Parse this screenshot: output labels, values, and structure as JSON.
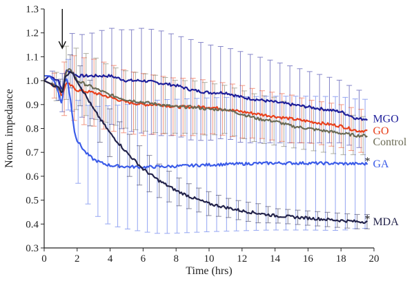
{
  "chart_data": {
    "type": "line",
    "xlabel": "Time (hrs)",
    "ylabel": "Norm. impedance",
    "xlim": [
      0,
      20
    ],
    "ylim": [
      0.3,
      1.3
    ],
    "xticks": [
      0,
      2,
      4,
      6,
      8,
      10,
      12,
      14,
      16,
      18,
      20
    ],
    "yticks": [
      0.3,
      0.4,
      0.5,
      0.6,
      0.7,
      0.8,
      0.9,
      1.0,
      1.1,
      1.2,
      1.3
    ],
    "grid": false,
    "arrow_at_x": 1.1,
    "series": [
      {
        "name": "MGO",
        "color": "#1f1f9a",
        "end_marker": "",
        "x": [
          0,
          0.3,
          0.6,
          0.9,
          1.1,
          1.3,
          1.6,
          2,
          3,
          4,
          5,
          6,
          7,
          8,
          9,
          10,
          11,
          12,
          13,
          14,
          15,
          16,
          17,
          18,
          19,
          19.6
        ],
        "values": [
          1.0,
          1.02,
          1.01,
          1.0,
          0.95,
          1.04,
          1.04,
          1.02,
          1.02,
          1.02,
          1.0,
          1.0,
          0.99,
          0.98,
          0.96,
          0.95,
          0.95,
          0.93,
          0.92,
          0.91,
          0.9,
          0.89,
          0.88,
          0.87,
          0.84,
          0.84
        ],
        "errors": [
          0.02,
          0.02,
          0.03,
          0.05,
          0.08,
          0.14,
          0.16,
          0.17,
          0.18,
          0.2,
          0.21,
          0.22,
          0.22,
          0.21,
          0.21,
          0.2,
          0.19,
          0.19,
          0.18,
          0.17,
          0.16,
          0.15,
          0.14,
          0.13,
          0.12,
          0.12
        ]
      },
      {
        "name": "GO",
        "color": "#e8401c",
        "end_marker": "",
        "x": [
          0,
          0.3,
          0.6,
          0.9,
          1.1,
          1.3,
          1.6,
          2,
          3,
          4,
          5,
          6,
          7,
          8,
          9,
          10,
          11,
          12,
          13,
          14,
          15,
          16,
          17,
          18,
          19,
          19.6
        ],
        "values": [
          1.0,
          0.99,
          0.98,
          0.97,
          0.93,
          0.99,
          0.98,
          0.96,
          0.95,
          0.93,
          0.91,
          0.9,
          0.9,
          0.89,
          0.89,
          0.89,
          0.88,
          0.87,
          0.86,
          0.85,
          0.84,
          0.83,
          0.82,
          0.81,
          0.79,
          0.79
        ],
        "errors": [
          0.02,
          0.03,
          0.05,
          0.08,
          0.1,
          0.12,
          0.13,
          0.14,
          0.14,
          0.14,
          0.13,
          0.13,
          0.12,
          0.12,
          0.12,
          0.11,
          0.11,
          0.11,
          0.1,
          0.1,
          0.1,
          0.09,
          0.09,
          0.09,
          0.09,
          0.09
        ]
      },
      {
        "name": "Control",
        "color": "#6b6b55",
        "end_marker": "",
        "x": [
          0,
          0.3,
          0.6,
          0.9,
          1.1,
          1.3,
          1.6,
          2,
          3,
          4,
          5,
          6,
          7,
          8,
          9,
          10,
          11,
          12,
          13,
          14,
          15,
          16,
          17,
          18,
          19,
          19.6
        ],
        "values": [
          1.0,
          0.99,
          0.98,
          0.97,
          0.95,
          1.03,
          1.05,
          1.0,
          0.97,
          0.94,
          0.92,
          0.91,
          0.9,
          0.89,
          0.89,
          0.88,
          0.88,
          0.86,
          0.84,
          0.83,
          0.81,
          0.8,
          0.79,
          0.78,
          0.77,
          0.77
        ],
        "errors": [
          0.02,
          0.03,
          0.05,
          0.07,
          0.09,
          0.11,
          0.12,
          0.13,
          0.13,
          0.12,
          0.12,
          0.12,
          0.12,
          0.11,
          0.11,
          0.11,
          0.1,
          0.1,
          0.1,
          0.1,
          0.09,
          0.09,
          0.09,
          0.09,
          0.08,
          0.08
        ]
      },
      {
        "name": "GA",
        "color": "#3a5be8",
        "end_marker": "*",
        "x": [
          0,
          0.3,
          0.6,
          0.9,
          1.0,
          1.1,
          1.2,
          1.4,
          1.6,
          1.8,
          2,
          2.5,
          3,
          3.5,
          4,
          5,
          6,
          7,
          8,
          9,
          10,
          11,
          12,
          13,
          14,
          15,
          16,
          17,
          18,
          19,
          19.6
        ],
        "values": [
          1.02,
          1.02,
          1.0,
          0.95,
          0.9,
          0.92,
          0.99,
          1.01,
          0.92,
          0.8,
          0.75,
          0.7,
          0.67,
          0.655,
          0.645,
          0.64,
          0.638,
          0.64,
          0.642,
          0.645,
          0.648,
          0.65,
          0.652,
          0.654,
          0.655,
          0.655,
          0.655,
          0.654,
          0.653,
          0.652,
          0.652
        ],
        "errors": [
          0.02,
          0.02,
          0.03,
          0.04,
          0.05,
          0.06,
          0.08,
          0.1,
          0.12,
          0.15,
          0.17,
          0.2,
          0.22,
          0.24,
          0.25,
          0.26,
          0.27,
          0.28,
          0.28,
          0.28,
          0.28,
          0.28,
          0.28,
          0.28,
          0.28,
          0.28,
          0.28,
          0.28,
          0.28,
          0.27,
          0.27
        ]
      },
      {
        "name": "MDA",
        "color": "#23234a",
        "end_marker": "*",
        "x": [
          0,
          0.3,
          0.6,
          0.9,
          1.1,
          1.3,
          1.6,
          2,
          2.5,
          3,
          3.5,
          4,
          5,
          6,
          7,
          8,
          9,
          10,
          11,
          12,
          13,
          14,
          15,
          16,
          17,
          18,
          19,
          19.6
        ],
        "values": [
          1.0,
          0.99,
          0.98,
          0.97,
          0.95,
          1.02,
          1.04,
          1.0,
          0.94,
          0.88,
          0.83,
          0.78,
          0.7,
          0.63,
          0.58,
          0.54,
          0.51,
          0.485,
          0.47,
          0.455,
          0.445,
          0.435,
          0.43,
          0.425,
          0.42,
          0.415,
          0.41,
          0.41
        ],
        "errors": [
          0.02,
          0.02,
          0.03,
          0.04,
          0.05,
          0.06,
          0.07,
          0.08,
          0.09,
          0.1,
          0.1,
          0.1,
          0.09,
          0.08,
          0.07,
          0.06,
          0.05,
          0.05,
          0.04,
          0.04,
          0.04,
          0.03,
          0.03,
          0.03,
          0.03,
          0.03,
          0.03,
          0.03
        ]
      }
    ]
  }
}
